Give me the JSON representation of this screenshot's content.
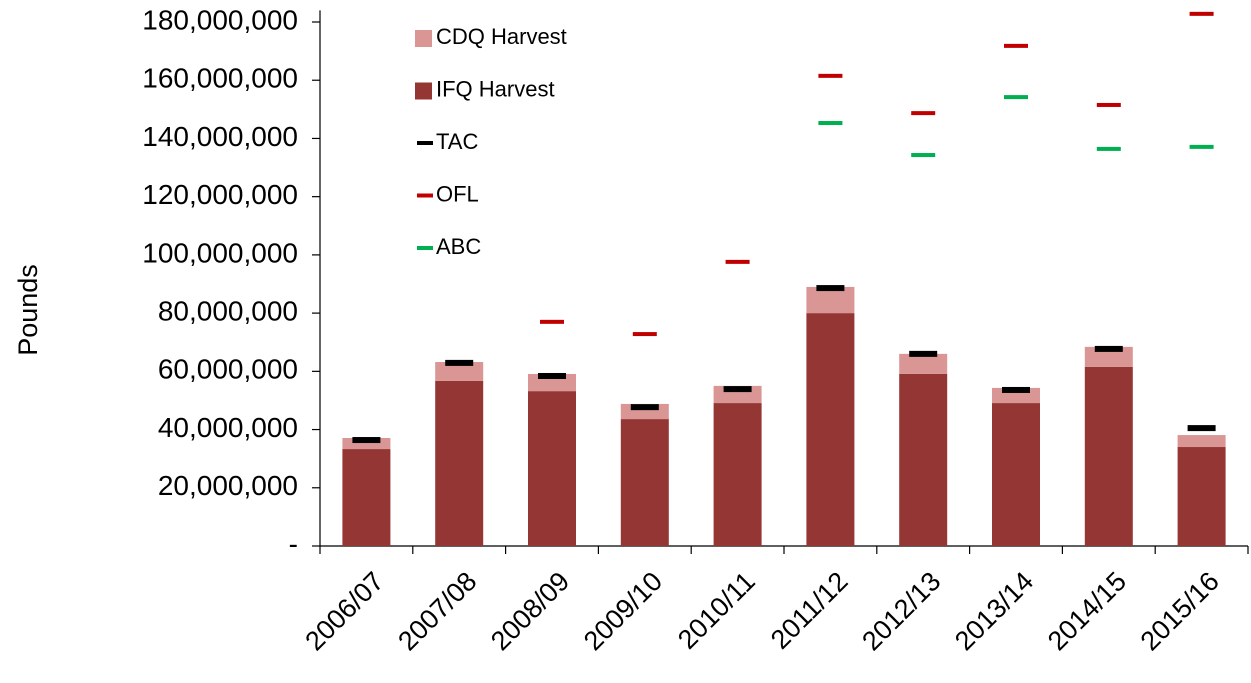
{
  "chart_data": {
    "type": "bar",
    "ylabel": "Pounds",
    "categories": [
      "2006/07",
      "2007/08",
      "2008/09",
      "2009/10",
      "2010/11",
      "2011/12",
      "2012/13",
      "2013/14",
      "2014/15",
      "2015/16"
    ],
    "series": [
      {
        "name": "IFQ Harvest",
        "type": "bar",
        "color": "#943634",
        "values": [
          33300000,
          56700000,
          53200000,
          43600000,
          49100000,
          80000000,
          59100000,
          49100000,
          61500000,
          34000000
        ]
      },
      {
        "name": "CDQ Harvest",
        "type": "bar",
        "color": "#d99694",
        "values": [
          3800000,
          6500000,
          5900000,
          5200000,
          5900000,
          9000000,
          6900000,
          5200000,
          6900000,
          4100000
        ]
      },
      {
        "name": "TAC",
        "type": "marker",
        "color": "#000000",
        "values": [
          36400000,
          62900000,
          58400000,
          47700000,
          53900000,
          88600000,
          66000000,
          53600000,
          67700000,
          40500000
        ]
      },
      {
        "name": "OFL",
        "type": "marker",
        "color": "#c00000",
        "values": [
          null,
          null,
          77000000,
          72800000,
          97600000,
          161500000,
          148700000,
          171800000,
          151500000,
          182800000
        ]
      },
      {
        "name": "ABC",
        "type": "marker",
        "color": "#00b050",
        "values": [
          null,
          null,
          null,
          null,
          null,
          145300000,
          134300000,
          154200000,
          136400000,
          137100000
        ]
      }
    ],
    "ylim": [
      0,
      184000000
    ],
    "yticks": [
      {
        "value": 0,
        "label": "-"
      },
      {
        "value": 20000000,
        "label": "20,000,000"
      },
      {
        "value": 40000000,
        "label": "40,000,000"
      },
      {
        "value": 60000000,
        "label": "60,000,000"
      },
      {
        "value": 80000000,
        "label": "80,000,000"
      },
      {
        "value": 100000000,
        "label": "100,000,000"
      },
      {
        "value": 120000000,
        "label": "120,000,000"
      },
      {
        "value": 140000000,
        "label": "140,000,000"
      },
      {
        "value": 160000000,
        "label": "160,000,000"
      },
      {
        "value": 180000000,
        "label": "180,000,000"
      }
    ]
  }
}
